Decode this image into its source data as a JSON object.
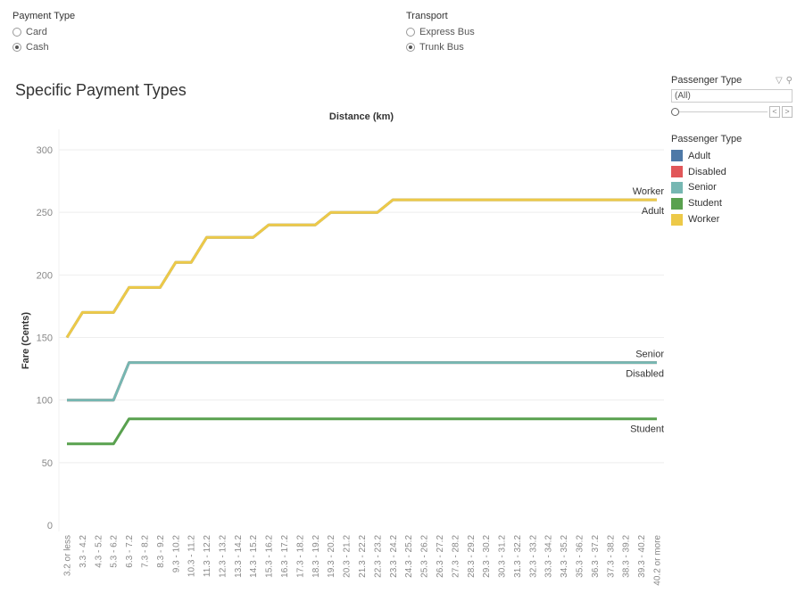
{
  "filters": {
    "payment_type": {
      "title": "Payment Type",
      "options": [
        {
          "label": "Card",
          "selected": false
        },
        {
          "label": "Cash",
          "selected": true
        }
      ]
    },
    "transport": {
      "title": "Transport",
      "options": [
        {
          "label": "Express Bus",
          "selected": false
        },
        {
          "label": "Trunk Bus",
          "selected": true
        }
      ]
    },
    "passenger_type": {
      "title": "Passenger Type",
      "value": "(All)",
      "prev_label": "<",
      "next_label": ">"
    }
  },
  "legend": {
    "title": "Passenger Type",
    "items": [
      {
        "label": "Adult",
        "color": "#4e79a7"
      },
      {
        "label": "Disabled",
        "color": "#e15759"
      },
      {
        "label": "Senior",
        "color": "#76b7b2"
      },
      {
        "label": "Student",
        "color": "#59a14f"
      },
      {
        "label": "Worker",
        "color": "#edc948"
      }
    ]
  },
  "chart_data": {
    "type": "line",
    "title": "Specific Payment Types",
    "xlabel": "Distance (km)",
    "ylabel": "Fare (Cents)",
    "ylim": [
      0,
      320
    ],
    "yticks": [
      0,
      50,
      100,
      150,
      200,
      250,
      300
    ],
    "grid": true,
    "categories": [
      "3.2 or less",
      "3.3 - 4.2",
      "4.3 - 5.2",
      "5.3 - 6.2",
      "6.3 - 7.2",
      "7.3 - 8.2",
      "8.3 - 9.2",
      "9.3 - 10.2",
      "10.3 - 11.2",
      "11.3 - 12.2",
      "12.3 - 13.2",
      "13.3 - 14.2",
      "14.3 - 15.2",
      "15.3 - 16.2",
      "16.3 - 17.2",
      "17.3 - 18.2",
      "18.3 - 19.2",
      "19.3 - 20.2",
      "20.3 - 21.2",
      "21.3 - 22.2",
      "22.3 - 23.2",
      "23.3 - 24.2",
      "24.3 - 25.2",
      "25.3 - 26.2",
      "26.3 - 27.2",
      "27.3 - 28.2",
      "28.3 - 29.2",
      "29.3 - 30.2",
      "30.3 - 31.2",
      "31.3 - 32.2",
      "32.3 - 33.2",
      "33.3 - 34.2",
      "34.3 - 35.2",
      "35.3 - 36.2",
      "36.3 - 37.2",
      "37.3 - 38.2",
      "38.3 - 39.2",
      "39.3 - 40.2",
      "40.2 or more"
    ],
    "series": [
      {
        "name": "Adult",
        "color": "#4e79a7",
        "end_label": "Adult",
        "values": [
          150,
          170,
          170,
          170,
          190,
          190,
          190,
          210,
          210,
          230,
          230,
          230,
          230,
          240,
          240,
          240,
          240,
          250,
          250,
          250,
          250,
          260,
          260,
          260,
          260,
          260,
          260,
          260,
          260,
          260,
          260,
          260,
          260,
          260,
          260,
          260,
          260,
          260,
          260
        ]
      },
      {
        "name": "Worker",
        "color": "#edc948",
        "end_label": "Worker",
        "values": [
          150,
          170,
          170,
          170,
          190,
          190,
          190,
          210,
          210,
          230,
          230,
          230,
          230,
          240,
          240,
          240,
          240,
          250,
          250,
          250,
          250,
          260,
          260,
          260,
          260,
          260,
          260,
          260,
          260,
          260,
          260,
          260,
          260,
          260,
          260,
          260,
          260,
          260,
          260
        ]
      },
      {
        "name": "Disabled",
        "color": "#e15759",
        "end_label": "Disabled",
        "values": [
          100,
          100,
          100,
          100,
          130,
          130,
          130,
          130,
          130,
          130,
          130,
          130,
          130,
          130,
          130,
          130,
          130,
          130,
          130,
          130,
          130,
          130,
          130,
          130,
          130,
          130,
          130,
          130,
          130,
          130,
          130,
          130,
          130,
          130,
          130,
          130,
          130,
          130,
          130
        ]
      },
      {
        "name": "Senior",
        "color": "#76b7b2",
        "end_label": "Senior",
        "values": [
          100,
          100,
          100,
          100,
          130,
          130,
          130,
          130,
          130,
          130,
          130,
          130,
          130,
          130,
          130,
          130,
          130,
          130,
          130,
          130,
          130,
          130,
          130,
          130,
          130,
          130,
          130,
          130,
          130,
          130,
          130,
          130,
          130,
          130,
          130,
          130,
          130,
          130,
          130
        ]
      },
      {
        "name": "Student",
        "color": "#59a14f",
        "end_label": "Student",
        "values": [
          65,
          65,
          65,
          65,
          85,
          85,
          85,
          85,
          85,
          85,
          85,
          85,
          85,
          85,
          85,
          85,
          85,
          85,
          85,
          85,
          85,
          85,
          85,
          85,
          85,
          85,
          85,
          85,
          85,
          85,
          85,
          85,
          85,
          85,
          85,
          85,
          85,
          85,
          85
        ]
      }
    ]
  }
}
